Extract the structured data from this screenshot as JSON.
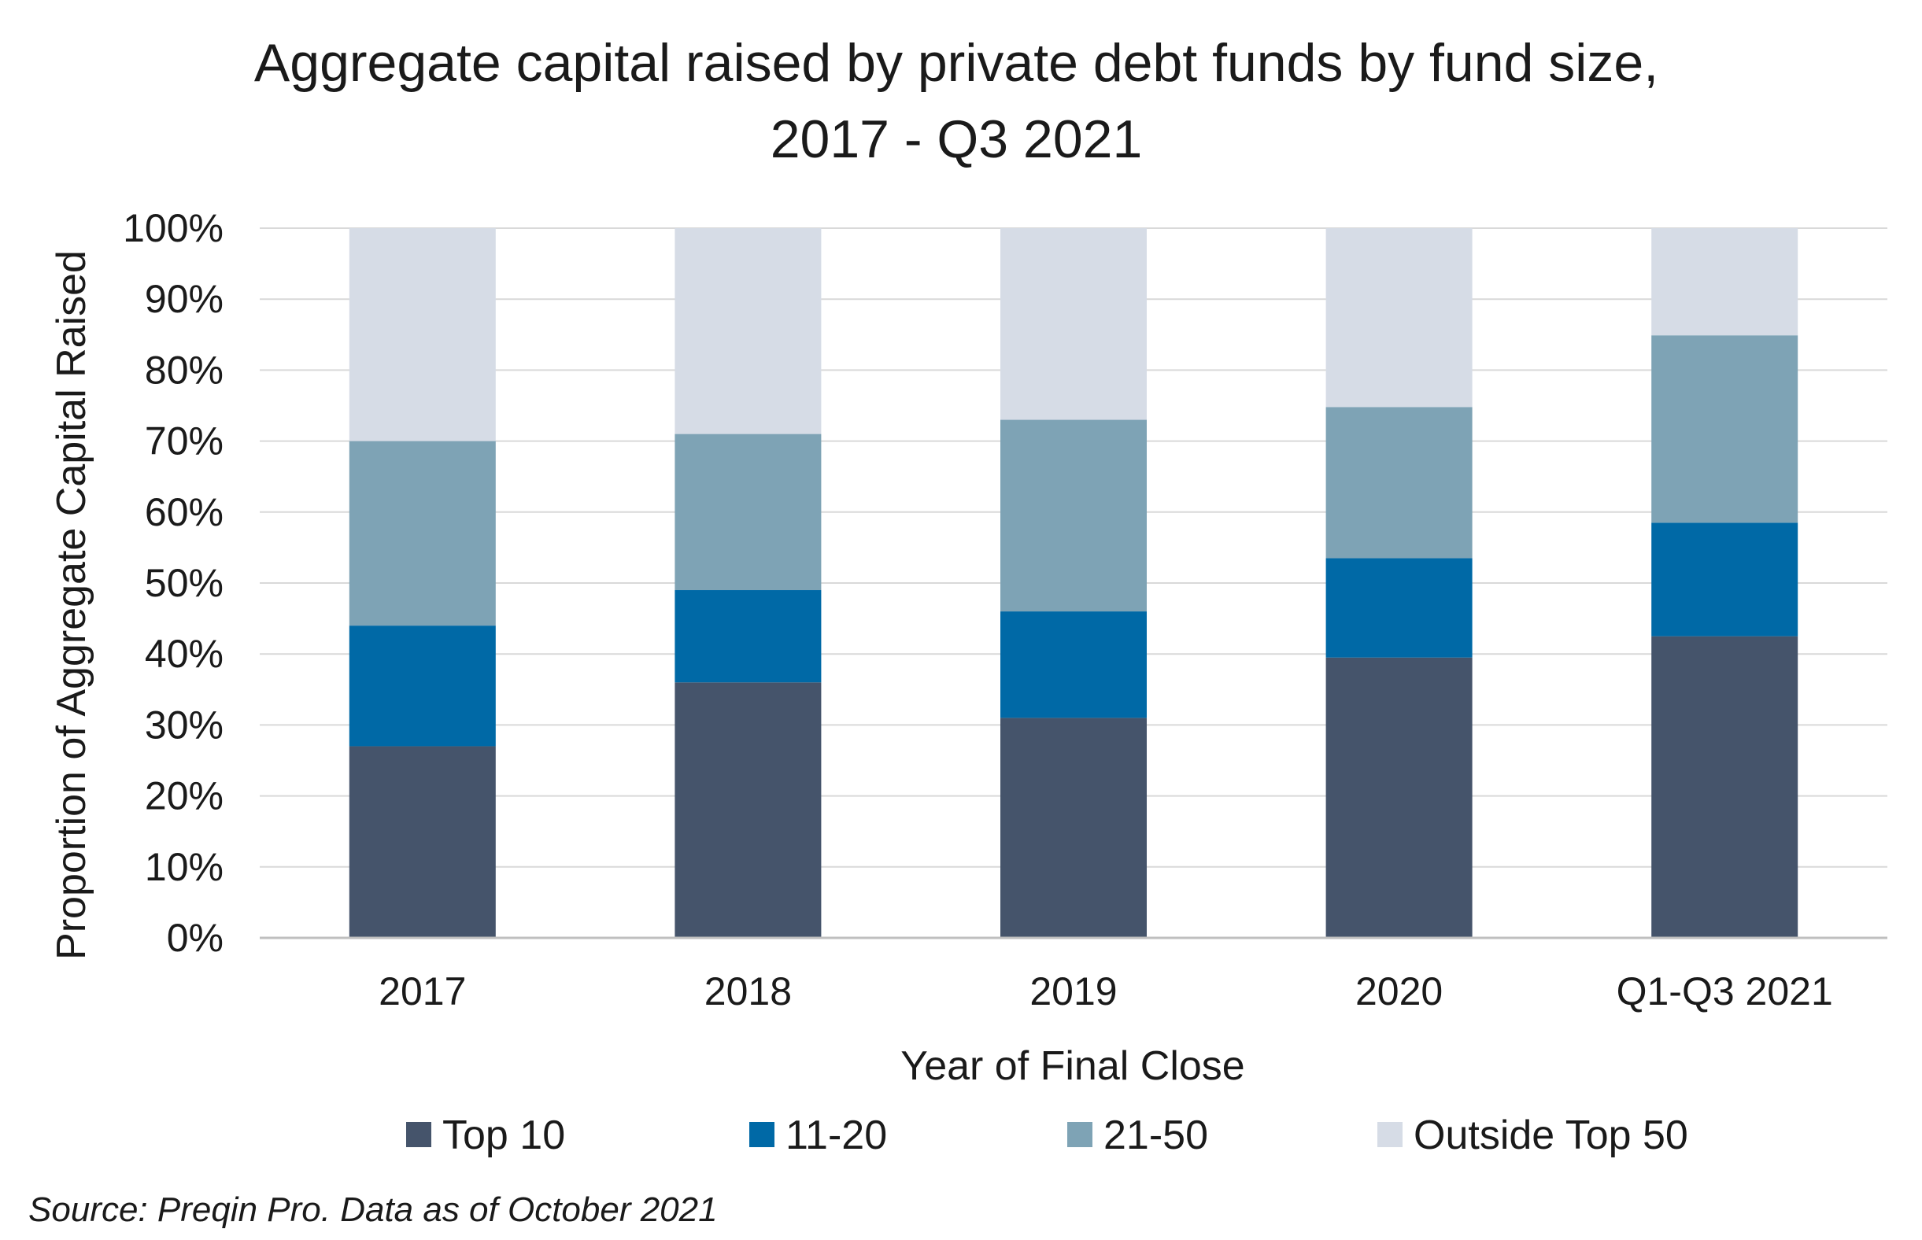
{
  "chart_data": {
    "type": "bar",
    "stacked": true,
    "title": [
      "Aggregate capital raised by private debt funds by fund size,",
      "2017 - Q3 2021"
    ],
    "xlabel": "Year of Final Close",
    "ylabel": "Proportion of Aggregate Capital Raised",
    "categories": [
      "2017",
      "2018",
      "2019",
      "2020",
      "Q1-Q3 2021"
    ],
    "yticks": [
      "0%",
      "10%",
      "20%",
      "30%",
      "40%",
      "50%",
      "60%",
      "70%",
      "80%",
      "90%",
      "100%"
    ],
    "ylim": [
      0,
      100
    ],
    "grid": true,
    "legend_position": "bottom",
    "series": [
      {
        "name": "Top 10",
        "color": "#45546b",
        "values": [
          27,
          36,
          31,
          39.5,
          42.5
        ]
      },
      {
        "name": "11-20",
        "color": "#0069a6",
        "values": [
          17,
          13,
          15,
          14,
          16
        ]
      },
      {
        "name": "21-50",
        "color": "#7ea3b5",
        "values": [
          26,
          22,
          27,
          21.3,
          26.4
        ]
      },
      {
        "name": "Outside Top 50",
        "color": "#d6dce6",
        "values": [
          30,
          29,
          27,
          25.2,
          15.1
        ]
      }
    ]
  },
  "source_note": "Source: Preqin Pro. Data as of October 2021"
}
